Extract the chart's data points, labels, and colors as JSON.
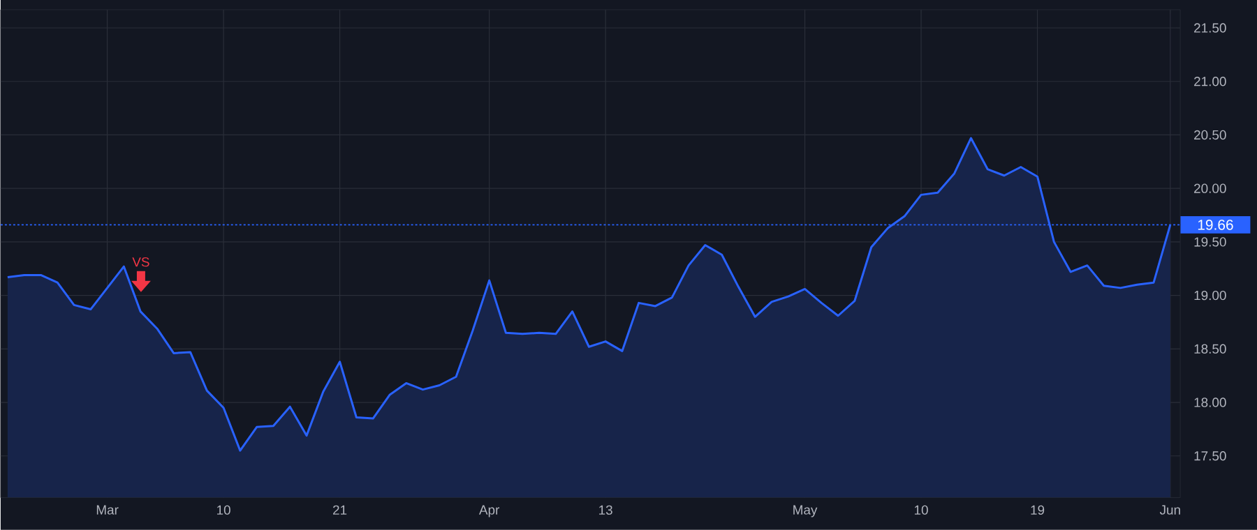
{
  "chart_data": {
    "type": "area",
    "categories": [
      null,
      null,
      null,
      null,
      null,
      null,
      "Mar",
      null,
      null,
      null,
      null,
      null,
      null,
      "10",
      null,
      null,
      null,
      null,
      null,
      null,
      "21",
      null,
      null,
      null,
      null,
      null,
      null,
      null,
      null,
      "Apr",
      null,
      null,
      null,
      null,
      null,
      null,
      "13",
      null,
      null,
      null,
      null,
      null,
      null,
      null,
      null,
      null,
      null,
      null,
      "May",
      null,
      null,
      null,
      null,
      null,
      null,
      "10",
      null,
      null,
      null,
      null,
      null,
      null,
      "19",
      null,
      null,
      null,
      null,
      null,
      null,
      null,
      "Jun"
    ],
    "series": [
      {
        "color": "#2962ff",
        "values": [
          19.17,
          19.19,
          19.19,
          19.12,
          18.91,
          18.87,
          19.07,
          19.27,
          18.85,
          18.69,
          18.46,
          18.47,
          18.11,
          17.95,
          17.55,
          17.77,
          17.78,
          17.96,
          17.69,
          18.1,
          18.38,
          17.86,
          17.85,
          18.07,
          18.18,
          18.12,
          18.16,
          18.24,
          18.67,
          19.14,
          18.65,
          18.64,
          18.65,
          18.64,
          18.85,
          18.52,
          18.57,
          18.48,
          18.93,
          18.9,
          18.98,
          19.28,
          19.47,
          19.38,
          19.08,
          18.8,
          18.94,
          18.99,
          19.06,
          18.93,
          18.81,
          18.95,
          19.45,
          19.63,
          19.74,
          19.94,
          19.96,
          20.14,
          20.47,
          20.18,
          20.12,
          20.2,
          20.11,
          19.5,
          19.22,
          19.28,
          19.09,
          19.07,
          19.1,
          19.12,
          19.66
        ]
      }
    ],
    "ylim": [
      17.11,
      21.67
    ],
    "yticks": [
      {
        "value": 17.5,
        "label": "17.50"
      },
      {
        "value": 18,
        "label": "18.00"
      },
      {
        "value": 18.5,
        "label": "18.50"
      },
      {
        "value": 19,
        "label": "19.00"
      },
      {
        "value": 19.5,
        "label": "19.50"
      },
      {
        "value": 20,
        "label": "20.00"
      },
      {
        "value": 20.5,
        "label": "20.50"
      },
      {
        "value": 21,
        "label": "21.00"
      },
      {
        "value": 21.5,
        "label": "21.50"
      }
    ],
    "grid": true,
    "ref_lines": [
      {
        "axis": "y",
        "value": 19.66,
        "label": "19.66",
        "color": "#2962ff",
        "line_style": "dotted"
      }
    ],
    "annotations": [
      "VS"
    ]
  }
}
